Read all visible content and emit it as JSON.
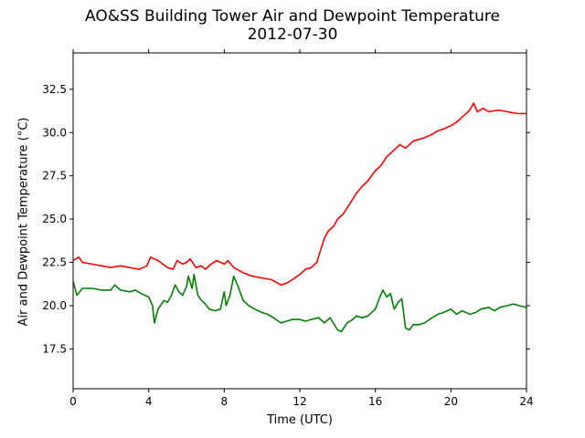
{
  "chart_data": {
    "type": "line",
    "title": "AO&SS Building Tower Air and Dewpoint Temperature",
    "subtitle": "2012-07-30",
    "xlabel": "Time (UTC)",
    "ylabel": "Air and Dewpoint Temperature (°C)",
    "xlim": [
      0,
      24
    ],
    "ylim": [
      15.2,
      34.6
    ],
    "xticks": [
      "0",
      "4",
      "8",
      "12",
      "16",
      "20",
      "24"
    ],
    "yticks": [
      "17.5",
      "20.0",
      "22.5",
      "25.0",
      "27.5",
      "30.0",
      "32.5"
    ],
    "grid": false,
    "legend": "none",
    "series": [
      {
        "color": "#ff0000",
        "x": [
          0,
          0.3,
          0.5,
          1,
          1.5,
          2,
          2.5,
          3,
          3.5,
          3.9,
          4.1,
          4.3,
          4.5,
          5,
          5.3,
          5.5,
          5.8,
          6,
          6.2,
          6.5,
          6.8,
          7,
          7.3,
          7.6,
          8,
          8.2,
          8.5,
          9,
          9.5,
          10,
          10.5,
          11,
          11.3,
          11.6,
          12,
          12.3,
          12.6,
          12.9,
          13.1,
          13.3,
          13.5,
          13.8,
          14,
          14.3,
          14.6,
          15,
          15.3,
          15.6,
          16,
          16.3,
          16.6,
          17,
          17.3,
          17.6,
          18,
          18.3,
          18.6,
          19,
          19.3,
          19.6,
          20,
          20.3,
          20.6,
          21,
          21.2,
          21.4,
          21.7,
          22,
          22.5,
          23,
          23.5,
          24
        ],
        "y": [
          22.6,
          22.8,
          22.5,
          22.4,
          22.3,
          22.2,
          22.3,
          22.2,
          22.1,
          22.3,
          22.8,
          22.7,
          22.6,
          22.2,
          22.1,
          22.6,
          22.4,
          22.5,
          22.7,
          22.2,
          22.3,
          22.1,
          22.4,
          22.6,
          22.4,
          22.6,
          22.2,
          21.9,
          21.7,
          21.6,
          21.5,
          21.2,
          21.3,
          21.5,
          21.8,
          22.1,
          22.2,
          22.5,
          23.2,
          23.9,
          24.3,
          24.6,
          25.0,
          25.3,
          25.8,
          26.5,
          26.9,
          27.2,
          27.8,
          28.1,
          28.6,
          29.0,
          29.3,
          29.1,
          29.5,
          29.6,
          29.7,
          29.9,
          30.1,
          30.2,
          30.4,
          30.6,
          30.9,
          31.3,
          31.7,
          31.2,
          31.4,
          31.2,
          31.3,
          31.2,
          31.1,
          31.1
        ]
      },
      {
        "color": "#008000",
        "x": [
          0,
          0.2,
          0.5,
          1,
          1.5,
          2,
          2.2,
          2.5,
          3,
          3.3,
          3.6,
          4,
          4.2,
          4.3,
          4.5,
          4.8,
          5,
          5.2,
          5.4,
          5.6,
          5.8,
          6,
          6.1,
          6.3,
          6.4,
          6.6,
          6.8,
          7,
          7.2,
          7.5,
          7.8,
          8,
          8.1,
          8.3,
          8.5,
          8.7,
          9,
          9.3,
          9.6,
          10,
          10.3,
          10.6,
          11,
          11.3,
          11.6,
          12,
          12.3,
          12.6,
          13,
          13.3,
          13.6,
          14,
          14.2,
          14.5,
          14.8,
          15,
          15.3,
          15.6,
          16,
          16.2,
          16.4,
          16.6,
          16.8,
          17,
          17.2,
          17.4,
          17.6,
          17.8,
          18,
          18.3,
          18.6,
          19,
          19.3,
          19.6,
          20,
          20.3,
          20.6,
          21,
          21.3,
          21.6,
          22,
          22.3,
          22.6,
          23,
          23.3,
          23.6,
          24
        ],
        "y": [
          21.4,
          20.6,
          21.0,
          21.0,
          20.9,
          20.9,
          21.2,
          20.9,
          20.8,
          20.9,
          20.7,
          20.5,
          20.0,
          19.0,
          19.8,
          20.3,
          20.2,
          20.6,
          21.2,
          20.8,
          20.6,
          21.1,
          21.7,
          21.0,
          21.8,
          20.6,
          20.3,
          20.1,
          19.8,
          19.7,
          19.8,
          20.8,
          20.0,
          20.6,
          21.7,
          21.2,
          20.3,
          20.0,
          19.8,
          19.6,
          19.5,
          19.3,
          19.0,
          19.1,
          19.2,
          19.2,
          19.1,
          19.2,
          19.3,
          19.0,
          19.3,
          18.6,
          18.5,
          19.0,
          19.2,
          19.4,
          19.3,
          19.4,
          19.8,
          20.4,
          20.9,
          20.5,
          20.7,
          19.8,
          20.2,
          20.4,
          18.7,
          18.6,
          18.9,
          18.9,
          19.0,
          19.3,
          19.5,
          19.6,
          19.8,
          19.5,
          19.7,
          19.5,
          19.6,
          19.8,
          19.9,
          19.7,
          19.9,
          20.0,
          20.1,
          20.0,
          19.9
        ]
      }
    ]
  }
}
